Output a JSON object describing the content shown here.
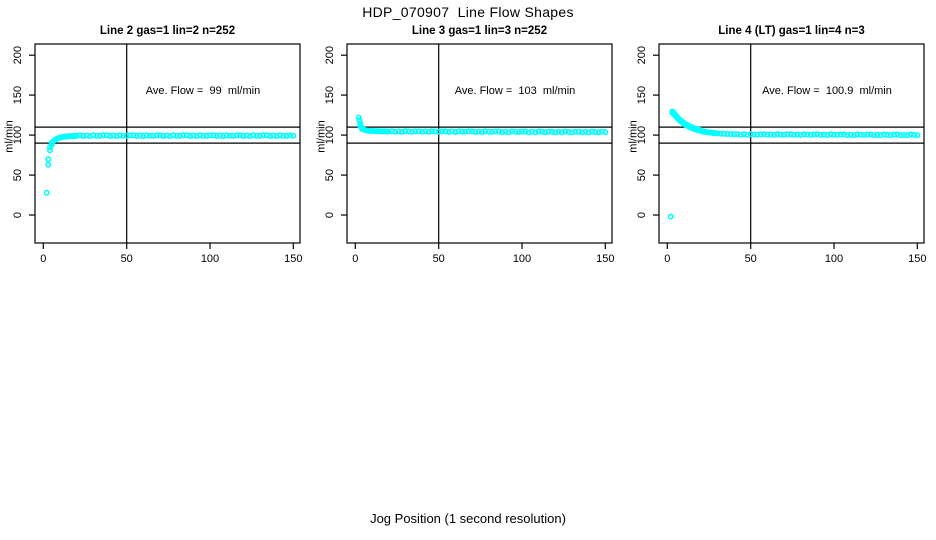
{
  "title": "HDP_070907  Line Flow Shapes",
  "xlabel": "Jog Position (1 second resolution)",
  "chart_data": {
    "type": "scatter",
    "ylabel": "ml/min",
    "xlim": [
      -5,
      154
    ],
    "ylim": [
      -35,
      214
    ],
    "x_ticks": [
      0,
      50,
      100,
      150
    ],
    "y_ticks": [
      0,
      50,
      100,
      150,
      200
    ],
    "grid": false,
    "ref_lines": {
      "horizontal": [
        90,
        110
      ],
      "vertical": [
        50
      ]
    },
    "colors": {
      "points": "#00ffff",
      "axis": "#000000",
      "background": "#ffffff"
    },
    "panels": [
      {
        "title": "Line 2 gas=1 lin=2 n=252",
        "annotation": "Ave. Flow =  99  ml/min",
        "ave_flow": 99,
        "unit": "ml/min",
        "points": [
          [
            2,
            28
          ],
          [
            3,
            63
          ],
          [
            3,
            70
          ],
          [
            4,
            81
          ],
          [
            4,
            85
          ],
          [
            5,
            88
          ],
          [
            5,
            90.5
          ],
          [
            6,
            92.5
          ],
          [
            7,
            94
          ],
          [
            8,
            95.3
          ],
          [
            9,
            96.2
          ],
          [
            10,
            96.9
          ],
          [
            11,
            97.4
          ],
          [
            12,
            97.8
          ],
          [
            13,
            98.1
          ],
          [
            14,
            98.3
          ],
          [
            15,
            98.5
          ],
          [
            16,
            98.6
          ],
          [
            17,
            98.7
          ],
          [
            18,
            98.8
          ],
          [
            19,
            98.9
          ],
          [
            20,
            99
          ],
          [
            22,
            99.8
          ],
          [
            24,
            98.9
          ],
          [
            26,
            99.5
          ],
          [
            28,
            98.7
          ],
          [
            30,
            99.9
          ],
          [
            32,
            99.3
          ],
          [
            34,
            99
          ],
          [
            36,
            99.6
          ],
          [
            38,
            99.8
          ],
          [
            40,
            98.9
          ],
          [
            42,
            99.5
          ],
          [
            44,
            98.7
          ],
          [
            46,
            99.9
          ],
          [
            48,
            99.3
          ],
          [
            50,
            99
          ],
          [
            52,
            99.6
          ],
          [
            54,
            99.8
          ],
          [
            56,
            98.9
          ],
          [
            58,
            99.5
          ],
          [
            60,
            98.7
          ],
          [
            62,
            99.9
          ],
          [
            64,
            99.3
          ],
          [
            66,
            99
          ],
          [
            68,
            99.6
          ],
          [
            70,
            99.8
          ],
          [
            72,
            98.9
          ],
          [
            74,
            99.5
          ],
          [
            76,
            98.7
          ],
          [
            78,
            99.9
          ],
          [
            80,
            99.3
          ],
          [
            82,
            99
          ],
          [
            84,
            99.6
          ],
          [
            86,
            99.8
          ],
          [
            88,
            98.9
          ],
          [
            90,
            99.5
          ],
          [
            92,
            98.7
          ],
          [
            94,
            99.9
          ],
          [
            96,
            99.3
          ],
          [
            98,
            99
          ],
          [
            100,
            99.6
          ],
          [
            102,
            99.8
          ],
          [
            104,
            98.9
          ],
          [
            106,
            99.5
          ],
          [
            108,
            98.7
          ],
          [
            110,
            99.9
          ],
          [
            112,
            99.3
          ],
          [
            114,
            99
          ],
          [
            116,
            99.6
          ],
          [
            118,
            99.8
          ],
          [
            120,
            98.9
          ],
          [
            122,
            99.5
          ],
          [
            124,
            98.7
          ],
          [
            126,
            99.9
          ],
          [
            128,
            99.3
          ],
          [
            130,
            99
          ],
          [
            132,
            99.6
          ],
          [
            134,
            99.8
          ],
          [
            136,
            98.9
          ],
          [
            138,
            99.5
          ],
          [
            140,
            98.7
          ],
          [
            142,
            99.9
          ],
          [
            144,
            99.3
          ],
          [
            146,
            99
          ],
          [
            148,
            99.6
          ],
          [
            150,
            99.2
          ]
        ]
      },
      {
        "title": "Line 3 gas=1 lin=3 n=252",
        "annotation": "Ave. Flow =  103  ml/min",
        "ave_flow": 103,
        "unit": "ml/min",
        "points": [
          [
            2,
            122
          ],
          [
            2.5,
            118.5
          ],
          [
            3,
            114.5
          ],
          [
            3,
            111.5
          ],
          [
            4,
            109.3
          ],
          [
            4,
            107.8
          ],
          [
            5,
            107
          ],
          [
            6,
            106.3
          ],
          [
            7,
            105.8
          ],
          [
            8,
            105.5
          ],
          [
            9,
            105.3
          ],
          [
            10,
            105.2
          ],
          [
            11,
            105.1
          ],
          [
            12,
            105
          ],
          [
            13,
            104.9
          ],
          [
            14,
            104.8
          ],
          [
            15,
            104.8
          ],
          [
            16,
            104.7
          ],
          [
            17,
            104.7
          ],
          [
            18,
            104.6
          ],
          [
            19,
            104.6
          ],
          [
            20,
            104.5
          ],
          [
            22,
            105
          ],
          [
            24,
            104.2
          ],
          [
            26,
            104.7
          ],
          [
            28,
            104
          ],
          [
            30,
            105
          ],
          [
            32,
            104.5
          ],
          [
            34,
            104.2
          ],
          [
            36,
            104.8
          ],
          [
            38,
            104.9
          ],
          [
            40,
            104.1
          ],
          [
            42,
            104.6
          ],
          [
            44,
            104
          ],
          [
            46,
            105
          ],
          [
            48,
            104.5
          ],
          [
            50,
            104.2
          ],
          [
            52,
            104.7
          ],
          [
            54,
            104.8
          ],
          [
            56,
            104
          ],
          [
            58,
            104.5
          ],
          [
            60,
            103.9
          ],
          [
            62,
            104.9
          ],
          [
            64,
            104.4
          ],
          [
            66,
            104.1
          ],
          [
            68,
            104.6
          ],
          [
            70,
            104.7
          ],
          [
            72,
            103.9
          ],
          [
            74,
            104.4
          ],
          [
            76,
            103.8
          ],
          [
            78,
            104.8
          ],
          [
            80,
            104.3
          ],
          [
            82,
            104
          ],
          [
            84,
            104.5
          ],
          [
            86,
            104.6
          ],
          [
            88,
            103.8
          ],
          [
            90,
            104.3
          ],
          [
            92,
            103.7
          ],
          [
            94,
            104.7
          ],
          [
            96,
            104.2
          ],
          [
            98,
            103.9
          ],
          [
            100,
            104.4
          ],
          [
            102,
            104.5
          ],
          [
            104,
            103.7
          ],
          [
            106,
            104.2
          ],
          [
            108,
            103.6
          ],
          [
            110,
            104.6
          ],
          [
            112,
            104.1
          ],
          [
            114,
            103.8
          ],
          [
            116,
            104.3
          ],
          [
            118,
            104.4
          ],
          [
            120,
            103.6
          ],
          [
            122,
            104.1
          ],
          [
            124,
            103.5
          ],
          [
            126,
            104.5
          ],
          [
            128,
            104
          ],
          [
            130,
            103.7
          ],
          [
            132,
            104.2
          ],
          [
            134,
            104.3
          ],
          [
            136,
            103.5
          ],
          [
            138,
            104
          ],
          [
            140,
            103.4
          ],
          [
            142,
            104.4
          ],
          [
            144,
            103.9
          ],
          [
            146,
            103.6
          ],
          [
            148,
            104.1
          ],
          [
            150,
            103.8
          ]
        ]
      },
      {
        "title": "Line 4 (LT) gas=1 lin=4 n=3",
        "annotation": "Ave. Flow =  100.9  ml/min",
        "ave_flow": 100.9,
        "unit": "ml/min",
        "points": [
          [
            2,
            -2
          ],
          [
            3,
            129.5
          ],
          [
            3,
            128
          ],
          [
            3.5,
            128.8
          ],
          [
            4,
            126.4
          ],
          [
            4,
            127.5
          ],
          [
            4.5,
            125.2
          ],
          [
            5,
            123.7
          ],
          [
            5,
            124.8
          ],
          [
            6,
            121.3
          ],
          [
            6,
            122.4
          ],
          [
            7,
            119.2
          ],
          [
            7,
            120.3
          ],
          [
            8,
            117.3
          ],
          [
            8,
            118.4
          ],
          [
            9,
            115.6
          ],
          [
            9,
            116.7
          ],
          [
            10,
            114.1
          ],
          [
            10,
            115.2
          ],
          [
            11,
            112.7
          ],
          [
            11,
            113.8
          ],
          [
            12,
            111.5
          ],
          [
            12,
            112.6
          ],
          [
            13,
            110.4
          ],
          [
            13,
            111.5
          ],
          [
            14,
            109.4
          ],
          [
            14,
            110.5
          ],
          [
            15,
            108.5
          ],
          [
            15,
            109.5
          ],
          [
            16,
            107.7
          ],
          [
            16,
            108.7
          ],
          [
            17,
            107
          ],
          [
            17,
            108
          ],
          [
            18,
            106.4
          ],
          [
            18,
            107.3
          ],
          [
            19,
            105.8
          ],
          [
            19,
            106.7
          ],
          [
            20,
            105.3
          ],
          [
            20,
            106.2
          ],
          [
            21,
            104.8
          ],
          [
            22,
            104.4
          ],
          [
            23,
            104
          ],
          [
            24,
            103.7
          ],
          [
            25,
            103.4
          ],
          [
            26,
            103.1
          ],
          [
            27,
            102.8
          ],
          [
            28,
            102.6
          ],
          [
            29,
            102.4
          ],
          [
            30,
            102.2
          ],
          [
            32,
            101.9
          ],
          [
            34,
            101.6
          ],
          [
            36,
            101.4
          ],
          [
            38,
            101.2
          ],
          [
            40,
            101.1
          ],
          [
            42,
            101.3
          ],
          [
            44,
            100.5
          ],
          [
            46,
            101.1
          ],
          [
            48,
            100.3
          ],
          [
            50,
            101.3
          ],
          [
            52,
            100.8
          ],
          [
            54,
            100.5
          ],
          [
            56,
            101.1
          ],
          [
            58,
            101.2
          ],
          [
            60,
            100.4
          ],
          [
            62,
            100.9
          ],
          [
            64,
            100.2
          ],
          [
            66,
            101.2
          ],
          [
            68,
            100.7
          ],
          [
            70,
            100.4
          ],
          [
            72,
            101
          ],
          [
            74,
            101.1
          ],
          [
            76,
            100.2
          ],
          [
            78,
            100.8
          ],
          [
            80,
            100.1
          ],
          [
            82,
            101.1
          ],
          [
            84,
            100.6
          ],
          [
            86,
            100.3
          ],
          [
            88,
            100.9
          ],
          [
            90,
            101
          ],
          [
            92,
            100.1
          ],
          [
            94,
            100.6
          ],
          [
            96,
            100
          ],
          [
            98,
            101
          ],
          [
            100,
            100.5
          ],
          [
            102,
            100.2
          ],
          [
            104,
            100.8
          ],
          [
            106,
            100.9
          ],
          [
            108,
            100
          ],
          [
            110,
            100.5
          ],
          [
            112,
            99.9
          ],
          [
            114,
            100.9
          ],
          [
            116,
            100.4
          ],
          [
            118,
            100.1
          ],
          [
            120,
            100.7
          ],
          [
            122,
            100.8
          ],
          [
            124,
            99.9
          ],
          [
            126,
            100.4
          ],
          [
            128,
            99.8
          ],
          [
            130,
            100.8
          ],
          [
            132,
            100.3
          ],
          [
            134,
            100
          ],
          [
            136,
            100.6
          ],
          [
            138,
            100.7
          ],
          [
            140,
            99.8
          ],
          [
            142,
            100.3
          ],
          [
            144,
            99.7
          ],
          [
            146,
            100.7
          ],
          [
            148,
            100.2
          ],
          [
            150,
            100
          ]
        ]
      }
    ]
  }
}
